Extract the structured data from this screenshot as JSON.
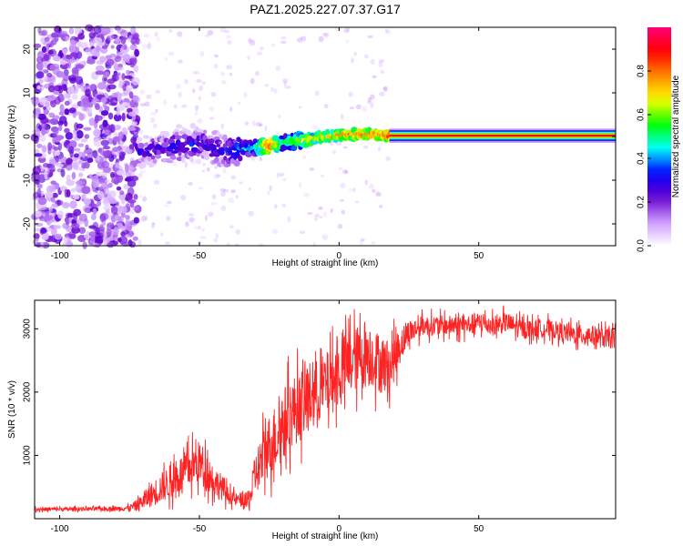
{
  "title": "PAZ1.2025.227.07.37.G17",
  "chart_data": [
    {
      "type": "heatmap",
      "title": "PAZ1.2025.227.07.37.G17",
      "xlabel": "Height of straight line (km)",
      "ylabel": "Frequency (Hz)",
      "xlim": [
        -109,
        99
      ],
      "ylim": [
        -25,
        25
      ],
      "xticks": [
        "-100",
        "-50",
        "0",
        "50"
      ],
      "yticks": [
        "-20",
        "-10",
        "0",
        "10",
        "20"
      ],
      "colorbar": {
        "label": "Normalized spectral amplitude",
        "range": [
          0,
          1
        ],
        "ticks": [
          "0.0",
          "0.2",
          "0.4",
          "0.6",
          "0.8"
        ],
        "colors": [
          "#ffffff",
          "#cc99ff",
          "#6600cc",
          "#0000ff",
          "#00ffff",
          "#00ff00",
          "#ffff00",
          "#ff8800",
          "#ff0000",
          "#ff0077"
        ]
      },
      "ridge": [
        {
          "x": -70,
          "f": -3.5,
          "amp": 0.25
        },
        {
          "x": -65,
          "f": -3.0,
          "amp": 0.28
        },
        {
          "x": -60,
          "f": -2.5,
          "amp": 0.3
        },
        {
          "x": -55,
          "f": -2.0,
          "amp": 0.3
        },
        {
          "x": -50,
          "f": -1.5,
          "amp": 0.3
        },
        {
          "x": -45,
          "f": -2.5,
          "amp": 0.28
        },
        {
          "x": -40,
          "f": -3.5,
          "amp": 0.3
        },
        {
          "x": -35,
          "f": -3.0,
          "amp": 0.4
        },
        {
          "x": -30,
          "f": -2.5,
          "amp": 0.5
        },
        {
          "x": -25,
          "f": -2.0,
          "amp": 0.85
        },
        {
          "x": -20,
          "f": -1.5,
          "amp": 0.5
        },
        {
          "x": -15,
          "f": -1.0,
          "amp": 0.6
        },
        {
          "x": -10,
          "f": -0.5,
          "amp": 0.7
        },
        {
          "x": -5,
          "f": 0.0,
          "amp": 0.7
        },
        {
          "x": 0,
          "f": 0.3,
          "amp": 0.75
        },
        {
          "x": 5,
          "f": 0.5,
          "amp": 0.8
        },
        {
          "x": 10,
          "f": 0.5,
          "amp": 0.8
        },
        {
          "x": 15,
          "f": 0.3,
          "amp": 0.8
        },
        {
          "x": 20,
          "f": 0.2,
          "amp": 0.9
        },
        {
          "x": 99,
          "f": 0.2,
          "amp": 0.9
        }
      ]
    },
    {
      "type": "line",
      "xlabel": "Height of straight line (km)",
      "ylabel": "SNR (10 * v/v)",
      "xlim": [
        -109,
        99
      ],
      "ylim": [
        0,
        3450
      ],
      "xticks": [
        "-100",
        "-50",
        "0",
        "50"
      ],
      "yticks": [
        "1000",
        "2000",
        "3000"
      ],
      "color": "#ff2222",
      "x": [
        -109,
        -100,
        -90,
        -80,
        -75,
        -72,
        -68,
        -65,
        -60,
        -55,
        -52,
        -50,
        -47,
        -45,
        -42,
        -40,
        -37,
        -35,
        -33,
        -31,
        -30,
        -28,
        -26,
        -24,
        -22,
        -20,
        -18,
        -15,
        -12,
        -10,
        -8,
        -5,
        -2,
        0,
        2,
        5,
        8,
        10,
        12,
        15,
        18,
        20,
        22,
        25,
        30,
        35,
        40,
        45,
        50,
        55,
        60,
        65,
        70,
        75,
        80,
        85,
        90,
        95,
        99
      ],
      "y": [
        150,
        150,
        155,
        160,
        170,
        220,
        350,
        450,
        600,
        750,
        850,
        900,
        750,
        600,
        500,
        380,
        300,
        300,
        250,
        450,
        700,
        900,
        1100,
        1200,
        1350,
        1500,
        1650,
        1750,
        1850,
        1950,
        2000,
        2100,
        2200,
        2300,
        2400,
        2500,
        2550,
        2600,
        2550,
        2450,
        2400,
        2550,
        2750,
        2950,
        3050,
        3050,
        3050,
        3050,
        3100,
        3050,
        3100,
        3000,
        3000,
        3000,
        2950,
        2900,
        2900,
        2850,
        2850
      ],
      "noise_amplitude": [
        40,
        40,
        40,
        45,
        60,
        120,
        220,
        280,
        350,
        400,
        420,
        420,
        380,
        320,
        260,
        180,
        120,
        150,
        200,
        300,
        400,
        550,
        600,
        650,
        700,
        700,
        700,
        700,
        700,
        700,
        650,
        650,
        650,
        650,
        650,
        650,
        650,
        650,
        600,
        600,
        500,
        450,
        350,
        250,
        200,
        200,
        200,
        200,
        200,
        200,
        200,
        200,
        180,
        180,
        180,
        200,
        200,
        200,
        200
      ]
    }
  ]
}
